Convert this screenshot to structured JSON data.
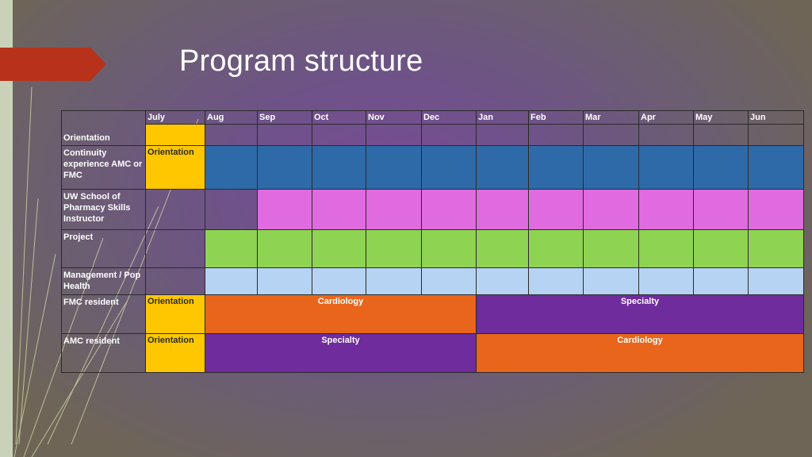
{
  "slide": {
    "title": "Program structure"
  },
  "months": [
    "July",
    "Aug",
    "Sep",
    "Oct",
    "Nov",
    "Dec",
    "Jan",
    "Feb",
    "Mar",
    "Apr",
    "May",
    "Jun"
  ],
  "rows": {
    "orientation": "Orientation",
    "continuity": "Continuity experience AMC or FMC",
    "uw": "UW School of Pharmacy Skills Instructor",
    "project": "Project",
    "management": "Management / Pop Health",
    "fmc": "FMC resident",
    "amc": "AMC resident"
  },
  "cells": {
    "continuity_july": "Orientation",
    "fmc_july": "Orientation",
    "fmc_first": "Cardiology",
    "fmc_second": "Specialty",
    "amc_july": "Orientation",
    "amc_first": "Specialty",
    "amc_second": "Cardiology"
  },
  "colors": {
    "yellow": "#ffc700",
    "blue": "#2f6aa8",
    "pink": "#e06ae0",
    "green": "#8fd352",
    "light_blue": "#b7d3f3",
    "orange": "#e8651b",
    "purple": "#6e2c9c",
    "accent_red": "#b8321b"
  }
}
